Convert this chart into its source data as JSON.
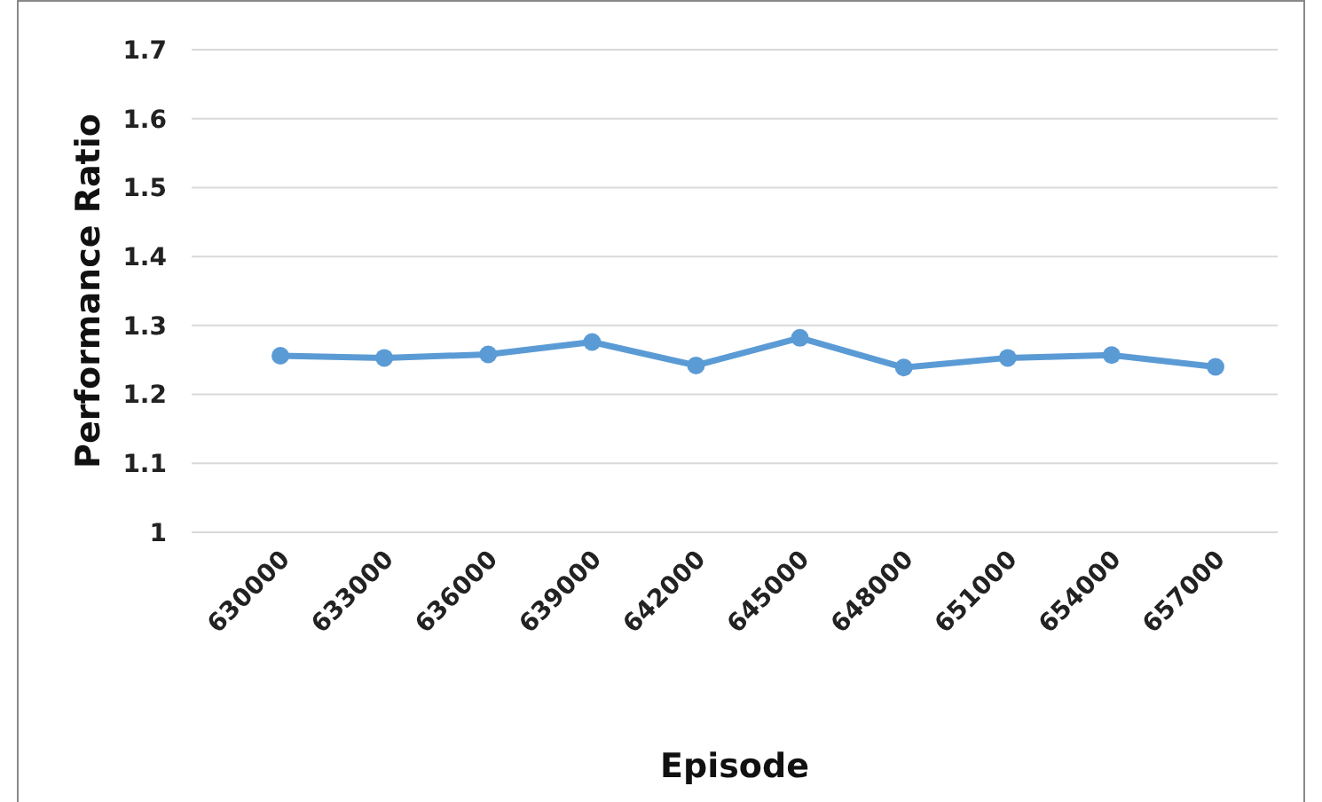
{
  "chart_data": {
    "type": "line",
    "xlabel": "Episode",
    "ylabel": "Performance Ratio",
    "categories": [
      "630000",
      "633000",
      "636000",
      "639000",
      "642000",
      "645000",
      "648000",
      "651000",
      "654000",
      "657000"
    ],
    "series": [
      {
        "color": "#5b9bd5",
        "values": [
          1.256,
          1.253,
          1.258,
          1.276,
          1.242,
          1.282,
          1.239,
          1.253,
          1.257,
          1.24
        ]
      }
    ],
    "ylim": [
      1,
      1.7
    ],
    "yticks": [
      1,
      1.1,
      1.2,
      1.3,
      1.4,
      1.5,
      1.6,
      1.7
    ],
    "grid": "y",
    "marker": "circle",
    "line_style": "solid"
  }
}
